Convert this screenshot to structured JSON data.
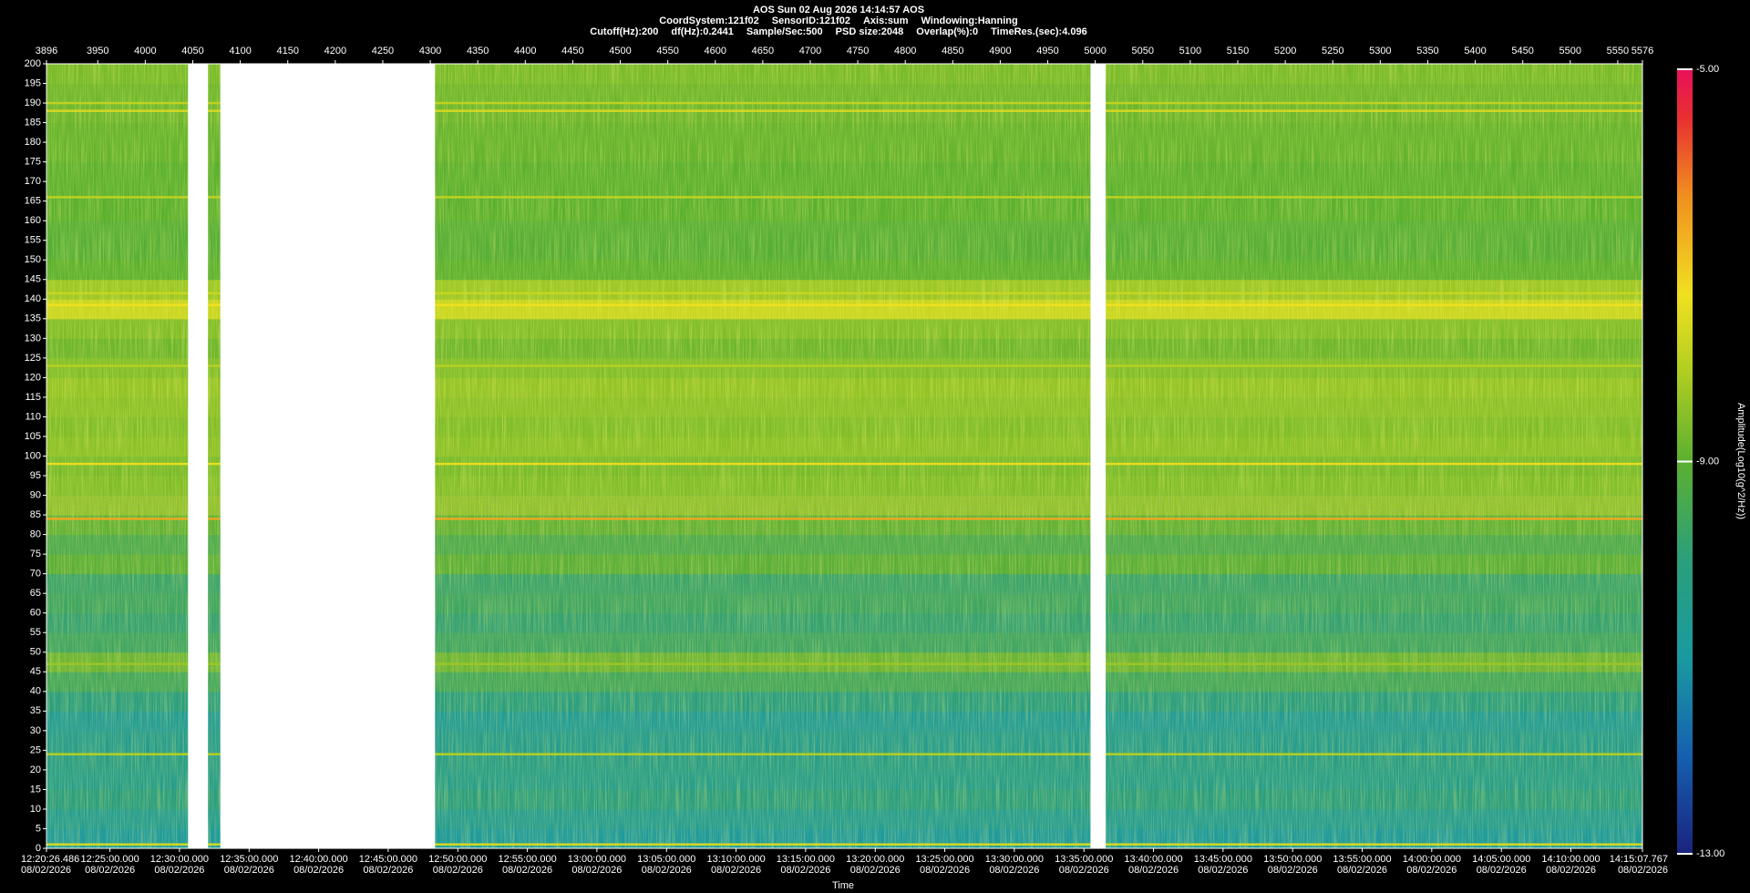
{
  "chart_data": {
    "type": "spectrogram",
    "title": "AOS  Sun 02 Aug 2026 14:14:57  AOS",
    "info_line1": [
      "CoordSystem:121f02",
      "SensorID:121f02",
      "Axis:sum",
      "Windowing:Hanning"
    ],
    "info_line2": [
      "Cutoff(Hz):200",
      "df(Hz):0.2441",
      "Sample/Sec:500",
      "PSD size:2048",
      "Overlap(%):0",
      "TimeRes.(sec):4.096"
    ],
    "xlabel": "Time",
    "colorbar_label": "Amplitude(Log10(g^2/Hz))",
    "xlim": [
      3896,
      5576
    ],
    "xticks": [
      3896,
      3950,
      4000,
      4050,
      4100,
      4150,
      4200,
      4250,
      4300,
      4350,
      4400,
      4450,
      4500,
      4550,
      4600,
      4650,
      4700,
      4750,
      4800,
      4850,
      4900,
      4950,
      5000,
      5050,
      5100,
      5150,
      5200,
      5250,
      5300,
      5350,
      5400,
      5450,
      5500,
      5550,
      5576
    ],
    "time_ticks": [
      {
        "value": 3896,
        "label": "12:20:26.486",
        "date": "08/02/2026"
      },
      {
        "value": 3962.8,
        "label": "12:25:00.000",
        "date": "08/02/2026"
      },
      {
        "value": 4036.0,
        "label": "12:30:00.000",
        "date": "08/02/2026"
      },
      {
        "value": 4109.3,
        "label": "12:35:00.000",
        "date": "08/02/2026"
      },
      {
        "value": 4182.5,
        "label": "12:40:00.000",
        "date": "08/02/2026"
      },
      {
        "value": 4255.7,
        "label": "12:45:00.000",
        "date": "08/02/2026"
      },
      {
        "value": 4329.0,
        "label": "12:50:00.000",
        "date": "08/02/2026"
      },
      {
        "value": 4402.2,
        "label": "12:55:00.000",
        "date": "08/02/2026"
      },
      {
        "value": 4475.4,
        "label": "13:00:00.000",
        "date": "08/02/2026"
      },
      {
        "value": 4548.7,
        "label": "13:05:00.000",
        "date": "08/02/2026"
      },
      {
        "value": 4621.9,
        "label": "13:10:00.000",
        "date": "08/02/2026"
      },
      {
        "value": 4695.1,
        "label": "13:15:00.000",
        "date": "08/02/2026"
      },
      {
        "value": 4768.4,
        "label": "13:20:00.000",
        "date": "08/02/2026"
      },
      {
        "value": 4841.6,
        "label": "13:25:00.000",
        "date": "08/02/2026"
      },
      {
        "value": 4914.8,
        "label": "13:30:00.000",
        "date": "08/02/2026"
      },
      {
        "value": 4988.1,
        "label": "13:35:00.000",
        "date": "08/02/2026"
      },
      {
        "value": 5061.3,
        "label": "13:40:00.000",
        "date": "08/02/2026"
      },
      {
        "value": 5134.5,
        "label": "13:45:00.000",
        "date": "08/02/2026"
      },
      {
        "value": 5207.8,
        "label": "13:50:00.000",
        "date": "08/02/2026"
      },
      {
        "value": 5281.0,
        "label": "13:55:00.000",
        "date": "08/02/2026"
      },
      {
        "value": 5354.2,
        "label": "14:00:00.000",
        "date": "08/02/2026"
      },
      {
        "value": 5427.5,
        "label": "14:05:00.000",
        "date": "08/02/2026"
      },
      {
        "value": 5500.7,
        "label": "14:10:00.000",
        "date": "08/02/2026"
      },
      {
        "value": 5576,
        "label": "14:15:07.767",
        "date": "08/02/2026"
      }
    ],
    "ylim": [
      0,
      200
    ],
    "yticks": [
      0,
      5,
      10,
      15,
      20,
      25,
      30,
      35,
      40,
      45,
      50,
      55,
      60,
      65,
      70,
      75,
      80,
      85,
      90,
      95,
      100,
      105,
      110,
      115,
      120,
      125,
      130,
      135,
      140,
      145,
      150,
      155,
      160,
      165,
      170,
      175,
      180,
      185,
      190,
      195,
      200
    ],
    "freq_bins": [
      0,
      5,
      10,
      15,
      20,
      25,
      30,
      35,
      40,
      45,
      50,
      55,
      60,
      65,
      70,
      75,
      80,
      85,
      90,
      95,
      100,
      105,
      110,
      115,
      120,
      125,
      130,
      135,
      140,
      145,
      150,
      155,
      160,
      165,
      170,
      175,
      180,
      185,
      190,
      195,
      200
    ],
    "values": [
      -10.8,
      -10.5,
      -10.0,
      -10.3,
      -10.2,
      -10.4,
      -10.6,
      -10.0,
      -9.5,
      -8.8,
      -9.6,
      -9.8,
      -9.6,
      -9.7,
      -9.0,
      -9.3,
      -8.9,
      -8.4,
      -8.6,
      -8.7,
      -8.5,
      -8.6,
      -8.5,
      -8.4,
      -8.6,
      -8.8,
      -8.6,
      -7.8,
      -8.3,
      -9.0,
      -9.1,
      -9.1,
      -9.0,
      -9.0,
      -9.0,
      -8.9,
      -8.9,
      -8.8,
      -8.8,
      -8.7
    ],
    "lines": [
      {
        "freq": 1,
        "value": -7.6
      },
      {
        "freq": 24,
        "value": -8.0
      },
      {
        "freq": 47,
        "value": -8.3
      },
      {
        "freq": 84,
        "value": -6.6
      },
      {
        "freq": 98,
        "value": -7.4
      },
      {
        "freq": 123,
        "value": -8.0
      },
      {
        "freq": 138.5,
        "value": -7.3
      },
      {
        "freq": 141.5,
        "value": -7.8
      },
      {
        "freq": 166,
        "value": -7.9
      },
      {
        "freq": 188,
        "value": -7.6
      },
      {
        "freq": 190,
        "value": -7.9
      }
    ],
    "gaps": [
      [
        4045,
        4066
      ],
      [
        4079,
        4305
      ],
      [
        4995,
        5011
      ]
    ],
    "clim": [
      -13,
      -5
    ],
    "cticks": [
      {
        "value": -5,
        "label": "-5.00"
      },
      {
        "value": -9,
        "label": "-9.00"
      },
      {
        "value": -13,
        "label": "-13.00"
      }
    ],
    "colorscale": [
      [
        -13,
        "#1a237e"
      ],
      [
        -12,
        "#1560b0"
      ],
      [
        -11,
        "#1a9aa0"
      ],
      [
        -10,
        "#2a9f7a"
      ],
      [
        -9,
        "#5cb030"
      ],
      [
        -8,
        "#b8d020"
      ],
      [
        -7.3,
        "#f0e020"
      ],
      [
        -6.3,
        "#f09020"
      ],
      [
        -5.5,
        "#e83030"
      ],
      [
        -5,
        "#e8105a"
      ]
    ]
  }
}
